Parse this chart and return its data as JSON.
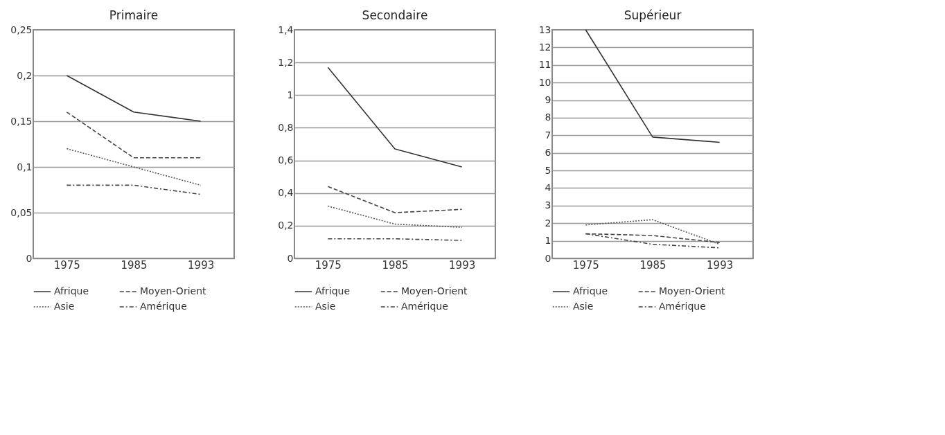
{
  "chart_data": [
    {
      "type": "line",
      "title": "Primaire",
      "categories": [
        "1975",
        "1985",
        "1993"
      ],
      "ylim": [
        0,
        0.25
      ],
      "yticks": [
        0,
        {
          "value": 0.05,
          "label": "0,05"
        },
        {
          "value": 0.1,
          "label": "0,1"
        },
        {
          "value": 0.15,
          "label": "0,15"
        },
        {
          "value": 0.2,
          "label": "0,2"
        },
        {
          "value": 0.25,
          "label": "0,25"
        }
      ],
      "grid": "y",
      "legend": "bottom",
      "series": [
        {
          "name": "Afrique",
          "color": "#333333",
          "line_style": "solid",
          "values": [
            0.2,
            0.16,
            0.15
          ]
        },
        {
          "name": "Moyen-Orient",
          "color": "#444444",
          "line_style": "dashed",
          "values": [
            0.16,
            0.11,
            0.11
          ]
        },
        {
          "name": "Asie",
          "color": "#555555",
          "line_style": "dotted",
          "values": [
            0.12,
            0.1,
            0.08
          ]
        },
        {
          "name": "Amérique",
          "color": "#444444",
          "line_style": "dashdot",
          "values": [
            0.08,
            0.08,
            0.07
          ]
        }
      ]
    },
    {
      "type": "line",
      "title": "Secondaire",
      "categories": [
        "1975",
        "1985",
        "1993"
      ],
      "ylim": [
        0,
        1.4
      ],
      "yticks": [
        0,
        {
          "value": 0.2,
          "label": "0,2"
        },
        {
          "value": 0.4,
          "label": "0,4"
        },
        {
          "value": 0.6,
          "label": "0,6"
        },
        {
          "value": 0.8,
          "label": "0,8"
        },
        1,
        {
          "value": 1.2,
          "label": "1,2"
        },
        {
          "value": 1.4,
          "label": "1,4"
        }
      ],
      "grid": "y",
      "legend": "bottom",
      "series": [
        {
          "name": "Afrique",
          "color": "#333333",
          "line_style": "solid",
          "values": [
            1.17,
            0.67,
            0.56
          ]
        },
        {
          "name": "Moyen-Orient",
          "color": "#444444",
          "line_style": "dashed",
          "values": [
            0.44,
            0.28,
            0.3
          ]
        },
        {
          "name": "Asie",
          "color": "#555555",
          "line_style": "dotted",
          "values": [
            0.32,
            0.21,
            0.19
          ]
        },
        {
          "name": "Amérique",
          "color": "#444444",
          "line_style": "dashdot",
          "values": [
            0.12,
            0.12,
            0.11
          ]
        }
      ]
    },
    {
      "type": "line",
      "title": "Supérieur",
      "categories": [
        "1975",
        "1985",
        "1993"
      ],
      "ylim": [
        0,
        13
      ],
      "yticks": [
        0,
        1,
        2,
        3,
        4,
        5,
        6,
        7,
        8,
        9,
        10,
        11,
        12,
        13
      ],
      "grid": "y",
      "legend": "bottom",
      "series": [
        {
          "name": "Afrique",
          "color": "#333333",
          "line_style": "solid",
          "values": [
            13,
            6.9,
            6.6
          ]
        },
        {
          "name": "Moyen-Orient",
          "color": "#444444",
          "line_style": "dashed",
          "values": [
            1.4,
            1.3,
            0.9
          ]
        },
        {
          "name": "Asie",
          "color": "#555555",
          "line_style": "dotted",
          "values": [
            1.9,
            2.2,
            0.8
          ]
        },
        {
          "name": "Amérique",
          "color": "#444444",
          "line_style": "dashdot",
          "values": [
            1.4,
            0.8,
            0.6
          ]
        }
      ]
    }
  ]
}
